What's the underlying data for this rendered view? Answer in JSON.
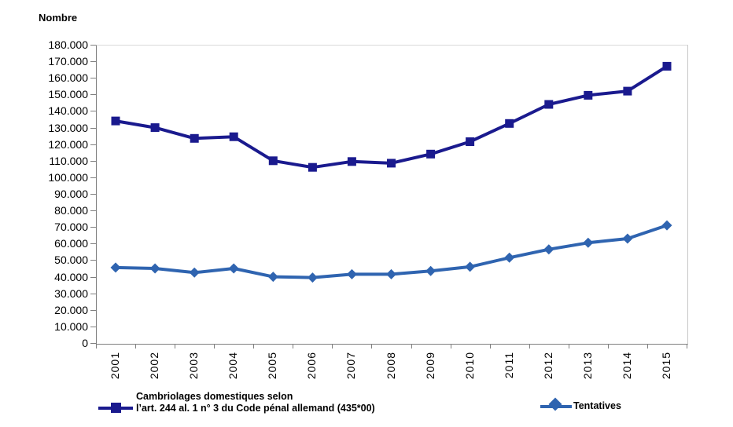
{
  "y_axis_title": "Nombre",
  "colors": {
    "cambriolages_series": "#1a1a8e",
    "tentatives_series": "#2f64b0",
    "gridline": "#e7e7e7",
    "axis_line": "#7f7f7f"
  },
  "legend": {
    "item1_line1": "Cambriolages domestiques selon",
    "item1_line2": "l’art. 244 al. 1 n° 3 du Code pénal allemand (435*00)",
    "item2_label": "Tentatives"
  },
  "chart_data": {
    "type": "line",
    "title": "",
    "xlabel": "",
    "ylabel": "Nombre",
    "ylim": [
      0,
      180000
    ],
    "ytick_step": 10000,
    "grid": true,
    "legend_position": "bottom",
    "categories": [
      "2001",
      "2002",
      "2003",
      "2004",
      "2005",
      "2006",
      "2007",
      "2008",
      "2009",
      "2010",
      "2011",
      "2012",
      "2013",
      "2014",
      "2015"
    ],
    "series": [
      {
        "name": "Cambriolages domestiques selon l’art. 244 al. 1 n° 3 du Code pénal allemand (435*00)",
        "marker": "square",
        "color": "#1a1a8e",
        "values": [
          134000,
          130000,
          123500,
          124500,
          110000,
          106000,
          109500,
          108500,
          114000,
          121500,
          132500,
          144000,
          149500,
          152000,
          167000
        ]
      },
      {
        "name": "Tentatives",
        "marker": "diamond",
        "color": "#2f64b0",
        "values": [
          45500,
          45000,
          42500,
          45000,
          40000,
          39500,
          41500,
          41500,
          43500,
          46000,
          51500,
          56500,
          60500,
          63000,
          71000
        ]
      }
    ]
  }
}
